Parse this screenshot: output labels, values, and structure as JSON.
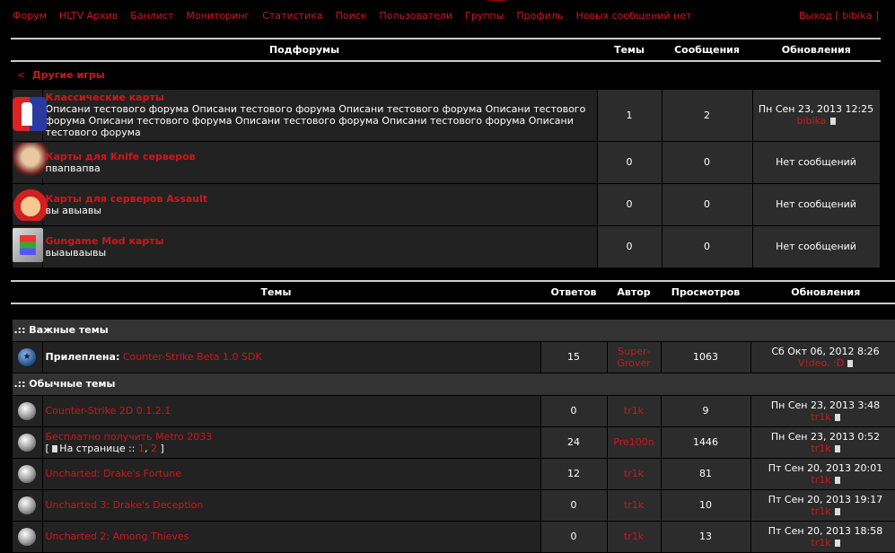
{
  "nav": {
    "items": [
      "Форум",
      "HLTV Архив",
      "Банлист",
      "Мониторинг",
      "Статистика",
      "Поиск",
      "Пользователи",
      "Группы",
      "Профиль",
      "Новых сообщений нет"
    ],
    "logout": "Выход [ bibika ]"
  },
  "subforums": {
    "headers": [
      "Подфорумы",
      "Темы",
      "Сообщения",
      "Обновления"
    ],
    "back_arrow": "<",
    "back_label": "Другие игры",
    "rows": [
      {
        "icon": "counter-strike-icon",
        "title": "Классические карты",
        "desc": "Описани тестового форума Описани тестового форума Описани тестового форума Описани тестового форума Описани тестового форума Описани тестового форума Описани тестового форума Описани тестового форума",
        "topics": "1",
        "posts": "2",
        "last": "Пн Сен 23, 2013 12:25",
        "last_user": "bibika"
      },
      {
        "icon": "knife-character-icon",
        "title": "Карты для Knife серверов",
        "desc": "пвапвапва",
        "topics": "0",
        "posts": "0",
        "last": "Нет сообщений"
      },
      {
        "icon": "mario-icon",
        "title": "Карты для серверов Assault",
        "desc": "вы авыавы",
        "topics": "0",
        "posts": "0",
        "last": "Нет сообщений"
      },
      {
        "icon": "gungame-tetris-icon",
        "title": "Gungame Mod карты",
        "desc": "выаываывы",
        "topics": "0",
        "posts": "0",
        "last": "Нет сообщений"
      }
    ]
  },
  "topics": {
    "headers": [
      "Темы",
      "Ответов",
      "Автор",
      "Просмотров",
      "Обновления"
    ],
    "important_label": ".:: Важные темы",
    "sticky_prefix": "Прилеплена:",
    "sticky": {
      "title": "Counter-Strike Beta 1.0 SDK",
      "replies": "15",
      "author": "Super-Grover",
      "views": "1063",
      "last": "Сб Окт 06, 2012 8:26",
      "last_user": "V!deo. :D"
    },
    "normal_label": ".:: Обычные темы",
    "pages_label": "На странице ::",
    "rows": [
      {
        "title": "Counter-Strike 2D 0.1.2.1",
        "replies": "0",
        "author": "tr1k",
        "views": "9",
        "last": "Пн Сен 23, 2013 3:48",
        "last_user": "tr1k"
      },
      {
        "title": "Бесплатно получить Metro 2033",
        "pages": [
          "1",
          "2"
        ],
        "replies": "24",
        "author": "Pre100n",
        "views": "1446",
        "last": "Пн Сен 23, 2013 0:52",
        "last_user": "tr1k"
      },
      {
        "title": "Uncharted: Drake's Fortune",
        "replies": "12",
        "author": "tr1k",
        "views": "81",
        "last": "Пт Сен 20, 2013 20:01",
        "last_user": "tr1k"
      },
      {
        "title": "Uncharted 3: Drake's Deception",
        "replies": "0",
        "author": "tr1k",
        "views": "10",
        "last": "Пт Сен 20, 2013 19:17",
        "last_user": "tr1k"
      },
      {
        "title": "Uncharted 2: Among Thieves",
        "replies": "0",
        "author": "tr1k",
        "views": "13",
        "last": "Пт Сен 20, 2013 18:58",
        "last_user": "tr1k"
      }
    ]
  }
}
